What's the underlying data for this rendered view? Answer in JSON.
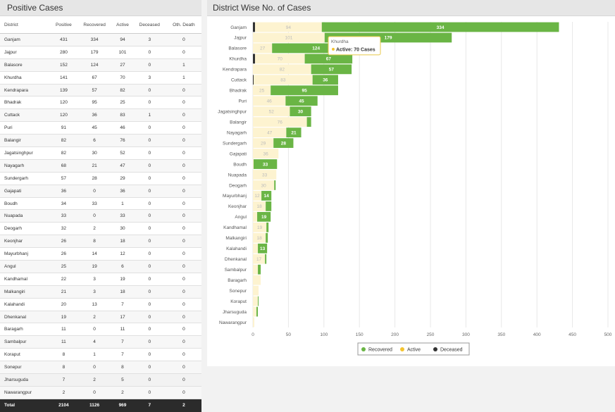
{
  "table": {
    "title": "Positive Cases",
    "headers": [
      "District",
      "Positive",
      "Recovered",
      "Active",
      "Deceased",
      "Oth. Death"
    ],
    "rows": [
      [
        "Ganjam",
        431,
        334,
        94,
        3,
        0
      ],
      [
        "Jajpur",
        280,
        179,
        101,
        0,
        0
      ],
      [
        "Balasore",
        152,
        124,
        27,
        0,
        1
      ],
      [
        "Khurdha",
        141,
        67,
        70,
        3,
        1
      ],
      [
        "Kendrapara",
        139,
        57,
        82,
        0,
        0
      ],
      [
        "Bhadrak",
        120,
        95,
        25,
        0,
        0
      ],
      [
        "Cuttack",
        120,
        36,
        83,
        1,
        0
      ],
      [
        "Puri",
        91,
        45,
        46,
        0,
        0
      ],
      [
        "Balangir",
        82,
        6,
        76,
        0,
        0
      ],
      [
        "Jagatsinghpur",
        82,
        30,
        52,
        0,
        0
      ],
      [
        "Nayagarh",
        68,
        21,
        47,
        0,
        0
      ],
      [
        "Sundergarh",
        57,
        28,
        29,
        0,
        0
      ],
      [
        "Gajapati",
        36,
        0,
        36,
        0,
        0
      ],
      [
        "Boudh",
        34,
        33,
        1,
        0,
        0
      ],
      [
        "Nuapada",
        33,
        0,
        33,
        0,
        0
      ],
      [
        "Deogarh",
        32,
        2,
        30,
        0,
        0
      ],
      [
        "Keonjhar",
        26,
        8,
        18,
        0,
        0
      ],
      [
        "Mayurbhanj",
        26,
        14,
        12,
        0,
        0
      ],
      [
        "Angul",
        25,
        19,
        6,
        0,
        0
      ],
      [
        "Kandhamal",
        22,
        3,
        19,
        0,
        0
      ],
      [
        "Malkangiri",
        21,
        3,
        18,
        0,
        0
      ],
      [
        "Kalahandi",
        20,
        13,
        7,
        0,
        0
      ],
      [
        "Dhenkanal",
        19,
        2,
        17,
        0,
        0
      ],
      [
        "Baragarh",
        11,
        0,
        11,
        0,
        0
      ],
      [
        "Sambalpur",
        11,
        4,
        7,
        0,
        0
      ],
      [
        "Koraput",
        8,
        1,
        7,
        0,
        0
      ],
      [
        "Sonepur",
        8,
        0,
        8,
        0,
        0
      ],
      [
        "Jharsuguda",
        7,
        2,
        5,
        0,
        0
      ],
      [
        "Nawarangpur",
        2,
        0,
        2,
        0,
        0
      ]
    ],
    "total": [
      "Total",
      2104,
      1126,
      969,
      7,
      2
    ]
  },
  "chart_data": {
    "type": "bar",
    "title": "District Wise No. of Cases",
    "orientation": "horizontal",
    "stacked": true,
    "categories": [
      "Ganjam",
      "Jajpur",
      "Balasore",
      "Khurdha",
      "Kendrapara",
      "Cuttack",
      "Bhadrak",
      "Puri",
      "Jagatsinghpur",
      "Balangir",
      "Nayagarh",
      "Sundergarh",
      "Gajapati",
      "Boudh",
      "Nuapada",
      "Deogarh",
      "Mayurbhanj",
      "Keonjhar",
      "Angul",
      "Kandhamal",
      "Malkangiri",
      "Kalahandi",
      "Dhenkanal",
      "Sambalpur",
      "Baragarh",
      "Sonepur",
      "Koraput",
      "Jharsuguda",
      "Nawarangpur"
    ],
    "series": [
      {
        "name": "Deceased",
        "color": "#333333",
        "values": [
          3,
          0,
          0,
          3,
          0,
          1,
          0,
          0,
          0,
          0,
          0,
          0,
          0,
          0,
          0,
          0,
          0,
          0,
          0,
          0,
          0,
          0,
          0,
          0,
          0,
          0,
          0,
          0,
          0
        ]
      },
      {
        "name": "Active",
        "color": "#fdf3d0",
        "values": [
          94,
          101,
          27,
          70,
          82,
          83,
          25,
          46,
          52,
          76,
          47,
          29,
          36,
          1,
          33,
          30,
          12,
          18,
          6,
          19,
          18,
          7,
          17,
          7,
          11,
          8,
          7,
          5,
          2
        ]
      },
      {
        "name": "Recovered",
        "color": "#6ab545",
        "values": [
          334,
          179,
          124,
          67,
          57,
          36,
          95,
          45,
          30,
          6,
          21,
          28,
          0,
          33,
          0,
          2,
          14,
          8,
          19,
          3,
          3,
          13,
          2,
          4,
          0,
          0,
          1,
          2,
          0
        ]
      }
    ],
    "xlim": [
      0,
      500
    ],
    "xticks": [
      0,
      50,
      100,
      150,
      200,
      250,
      300,
      350,
      400,
      450,
      500
    ],
    "grid": true,
    "legend_position": "bottom",
    "tooltip": {
      "title": "Khurdha",
      "label": "Active: 70 Cases"
    }
  }
}
